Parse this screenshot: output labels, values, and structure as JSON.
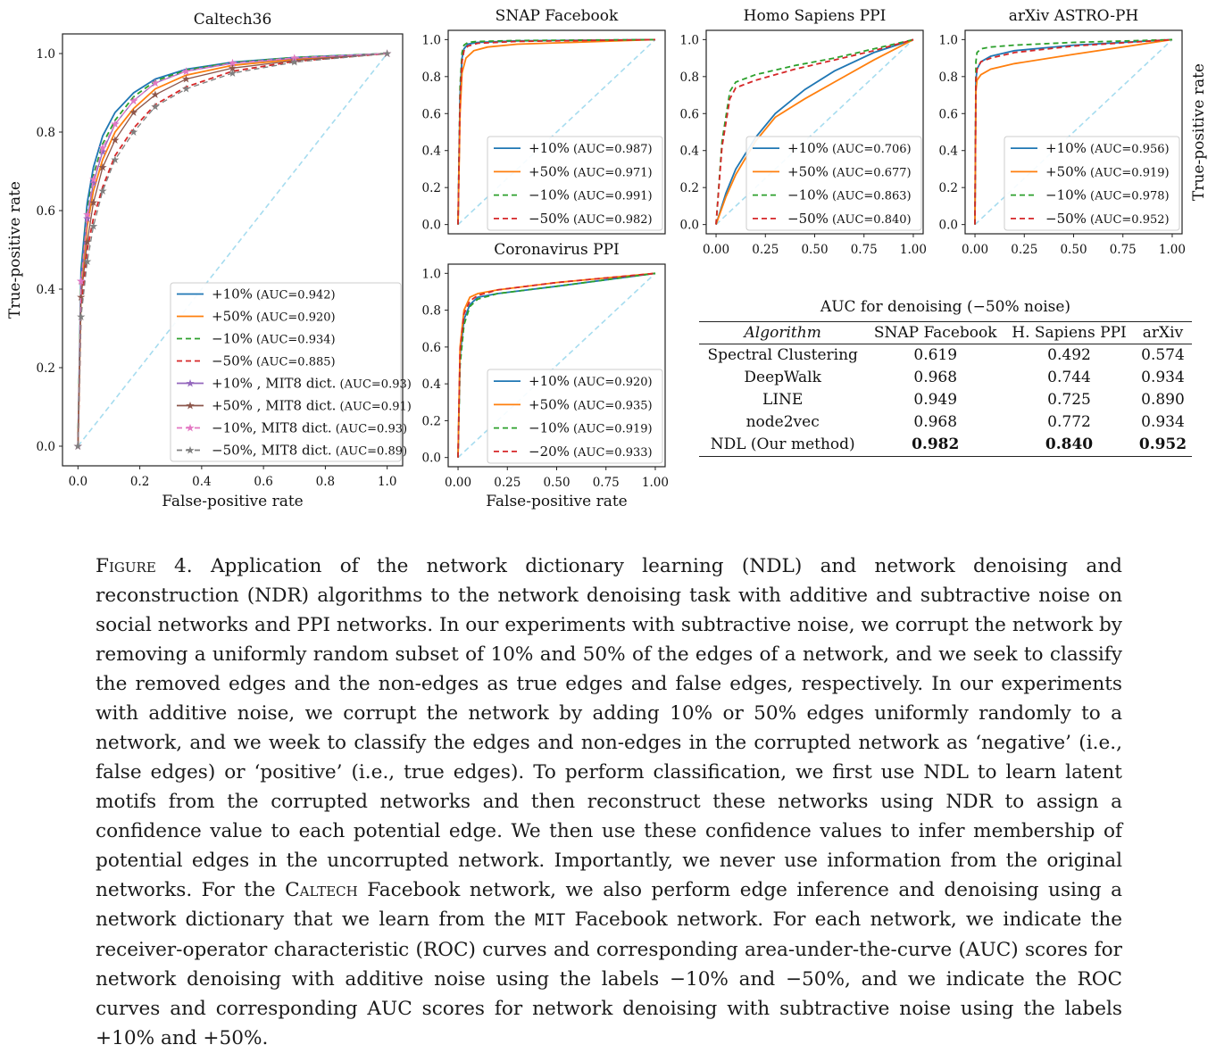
{
  "charts": [
    {
      "id": "caltech",
      "title": "Caltech36",
      "xlabel": "False-positive rate",
      "ylabel": "True-positive rate",
      "xticks": [
        "0.0",
        "0.2",
        "0.4",
        "0.6",
        "0.8",
        "1.0"
      ],
      "yticks": [
        "0.0",
        "0.2",
        "0.4",
        "0.6",
        "0.8",
        "1.0"
      ],
      "legend": [
        {
          "label": "+10%",
          "auc": "(AUC=0.942)"
        },
        {
          "label": "+50%",
          "auc": "(AUC=0.920)"
        },
        {
          "label": "−10%",
          "auc": "(AUC=0.934)"
        },
        {
          "label": "−50%",
          "auc": "(AUC=0.885)"
        },
        {
          "label": "+10% , MIT8 dict.",
          "auc": "(AUC=0.93)"
        },
        {
          "label": "+50% , MIT8 dict.",
          "auc": "(AUC=0.91)"
        },
        {
          "label": "−10%, MIT8 dict.",
          "auc": "(AUC=0.93)"
        },
        {
          "label": "−50%, MIT8 dict.",
          "auc": "(AUC=0.89)"
        }
      ]
    },
    {
      "id": "snap",
      "title": "SNAP Facebook",
      "xlabel": "",
      "ylabel": "",
      "xticks": [],
      "yticks": [
        "0.0",
        "0.2",
        "0.4",
        "0.6",
        "0.8",
        "1.0"
      ],
      "legend": [
        {
          "label": "+10%",
          "auc": "(AUC=0.987)"
        },
        {
          "label": "+50%",
          "auc": "(AUC=0.971)"
        },
        {
          "label": "−10%",
          "auc": "(AUC=0.991)"
        },
        {
          "label": "−50%",
          "auc": "(AUC=0.982)"
        }
      ]
    },
    {
      "id": "homo",
      "title": "Homo Sapiens PPI",
      "xlabel": "",
      "ylabel": "",
      "xticks": [
        "0.00",
        "0.25",
        "0.50",
        "0.75",
        "1.00"
      ],
      "yticks": [
        "0.0",
        "0.2",
        "0.4",
        "0.6",
        "0.8",
        "1.0"
      ],
      "legend": [
        {
          "label": "+10%",
          "auc": "(AUC=0.706)"
        },
        {
          "label": "+50%",
          "auc": "(AUC=0.677)"
        },
        {
          "label": "−10%",
          "auc": "(AUC=0.863)"
        },
        {
          "label": "−50%",
          "auc": "(AUC=0.840)"
        }
      ]
    },
    {
      "id": "arxiv",
      "title": "arXiv ASTRO-PH",
      "xlabel": "",
      "ylabel": "True-positive rate",
      "xticks": [
        "0.00",
        "0.25",
        "0.50",
        "0.75",
        "1.00"
      ],
      "yticks": [
        "0.0",
        "0.2",
        "0.4",
        "0.6",
        "0.8",
        "1.0"
      ],
      "legend": [
        {
          "label": "+10%",
          "auc": "(AUC=0.956)"
        },
        {
          "label": "+50%",
          "auc": "(AUC=0.919)"
        },
        {
          "label": "−10%",
          "auc": "(AUC=0.978)"
        },
        {
          "label": "−50%",
          "auc": "(AUC=0.952)"
        }
      ]
    },
    {
      "id": "corona",
      "title": "Coronavirus PPI",
      "xlabel": "False-positive rate",
      "ylabel": "",
      "xticks": [
        "0.00",
        "0.25",
        "0.50",
        "0.75",
        "1.00"
      ],
      "yticks": [
        "0.0",
        "0.2",
        "0.4",
        "0.6",
        "0.8",
        "1.0"
      ],
      "legend": [
        {
          "label": "+10%",
          "auc": "(AUC=0.920)"
        },
        {
          "label": "+50%",
          "auc": "(AUC=0.935)"
        },
        {
          "label": "−10%",
          "auc": "(AUC=0.919)"
        },
        {
          "label": "−20%",
          "auc": "(AUC=0.933)"
        }
      ]
    }
  ],
  "series_colors": [
    "#1f77b4",
    "#ff7f0e",
    "#2ca02c",
    "#d62728",
    "#9467bd",
    "#8c564b",
    "#e377c2",
    "#7f7f7f"
  ],
  "diagonal_color": "#a6dcef",
  "chart_data": [
    {
      "type": "line",
      "title": "Caltech36",
      "xlabel": "False-positive rate",
      "ylabel": "True-positive rate",
      "xlim": [
        0,
        1
      ],
      "ylim": [
        0,
        1
      ],
      "legend_position": "lower-right",
      "series": [
        {
          "name": "+10% (AUC=0.942)",
          "x": [
            0,
            0.01,
            0.03,
            0.05,
            0.08,
            0.12,
            0.18,
            0.25,
            0.35,
            0.5,
            0.7,
            1
          ],
          "y": [
            0,
            0.45,
            0.62,
            0.71,
            0.79,
            0.85,
            0.9,
            0.935,
            0.96,
            0.978,
            0.99,
            1
          ]
        },
        {
          "name": "+50% (AUC=0.920)",
          "x": [
            0,
            0.01,
            0.03,
            0.05,
            0.08,
            0.12,
            0.18,
            0.25,
            0.35,
            0.5,
            0.7,
            1
          ],
          "y": [
            0,
            0.4,
            0.56,
            0.65,
            0.73,
            0.8,
            0.86,
            0.91,
            0.945,
            0.97,
            0.985,
            1
          ]
        },
        {
          "name": "−10% (AUC=0.934)",
          "x": [
            0,
            0.01,
            0.03,
            0.05,
            0.08,
            0.12,
            0.18,
            0.25,
            0.35,
            0.5,
            0.7,
            1
          ],
          "y": [
            0,
            0.43,
            0.6,
            0.69,
            0.77,
            0.83,
            0.89,
            0.93,
            0.958,
            0.977,
            0.99,
            1
          ]
        },
        {
          "name": "−50% (AUC=0.885)",
          "x": [
            0,
            0.01,
            0.03,
            0.05,
            0.08,
            0.12,
            0.18,
            0.25,
            0.35,
            0.5,
            0.7,
            1
          ],
          "y": [
            0,
            0.35,
            0.5,
            0.58,
            0.66,
            0.74,
            0.81,
            0.87,
            0.915,
            0.955,
            0.98,
            1
          ]
        },
        {
          "name": "+10% , MIT8 dict. (AUC=0.93)",
          "x": [
            0,
            0.01,
            0.03,
            0.05,
            0.08,
            0.12,
            0.18,
            0.25,
            0.35,
            0.5,
            0.7,
            1
          ],
          "y": [
            0,
            0.42,
            0.58,
            0.67,
            0.75,
            0.82,
            0.88,
            0.925,
            0.955,
            0.975,
            0.988,
            1
          ]
        },
        {
          "name": "+50% , MIT8 dict. (AUC=0.91)",
          "x": [
            0,
            0.01,
            0.03,
            0.05,
            0.08,
            0.12,
            0.18,
            0.25,
            0.35,
            0.5,
            0.7,
            1
          ],
          "y": [
            0,
            0.38,
            0.52,
            0.62,
            0.71,
            0.78,
            0.85,
            0.895,
            0.935,
            0.963,
            0.982,
            1
          ]
        },
        {
          "name": "−10%, MIT8 dict. (AUC=0.93)",
          "x": [
            0,
            0.01,
            0.03,
            0.05,
            0.08,
            0.12,
            0.18,
            0.25,
            0.35,
            0.5,
            0.7,
            1
          ],
          "y": [
            0,
            0.42,
            0.59,
            0.68,
            0.76,
            0.82,
            0.88,
            0.925,
            0.955,
            0.976,
            0.989,
            1
          ]
        },
        {
          "name": "−50%, MIT8 dict. (AUC=0.89)",
          "x": [
            0,
            0.01,
            0.03,
            0.05,
            0.08,
            0.12,
            0.18,
            0.25,
            0.35,
            0.5,
            0.7,
            1
          ],
          "y": [
            0,
            0.33,
            0.47,
            0.56,
            0.65,
            0.73,
            0.8,
            0.865,
            0.91,
            0.95,
            0.978,
            1
          ]
        }
      ]
    },
    {
      "type": "line",
      "title": "SNAP Facebook",
      "xlim": [
        0,
        1
      ],
      "ylim": [
        0,
        1
      ],
      "legend_position": "lower-right",
      "series": [
        {
          "name": "+10% (AUC=0.987)",
          "x": [
            0,
            0.01,
            0.02,
            0.03,
            0.05,
            0.1,
            0.3,
            1
          ],
          "y": [
            0,
            0.7,
            0.9,
            0.95,
            0.975,
            0.985,
            0.993,
            1
          ]
        },
        {
          "name": "+50% (AUC=0.971)",
          "x": [
            0,
            0.01,
            0.02,
            0.04,
            0.08,
            0.15,
            0.3,
            1
          ],
          "y": [
            0,
            0.6,
            0.82,
            0.9,
            0.94,
            0.96,
            0.975,
            1
          ]
        },
        {
          "name": "−10% (AUC=0.991)",
          "x": [
            0,
            0.01,
            0.02,
            0.03,
            0.05,
            0.1,
            0.3,
            1
          ],
          "y": [
            0,
            0.75,
            0.93,
            0.97,
            0.985,
            0.99,
            0.995,
            1
          ]
        },
        {
          "name": "−50% (AUC=0.982)",
          "x": [
            0,
            0.01,
            0.02,
            0.03,
            0.05,
            0.1,
            0.3,
            1
          ],
          "y": [
            0,
            0.68,
            0.88,
            0.94,
            0.965,
            0.98,
            0.99,
            1
          ]
        }
      ]
    },
    {
      "type": "line",
      "title": "Homo Sapiens PPI",
      "xlim": [
        0,
        1
      ],
      "ylim": [
        0,
        1
      ],
      "legend_position": "lower-right",
      "series": [
        {
          "name": "+10% (AUC=0.706)",
          "x": [
            0,
            0.05,
            0.1,
            0.2,
            0.3,
            0.45,
            0.6,
            0.8,
            1
          ],
          "y": [
            0,
            0.17,
            0.3,
            0.47,
            0.6,
            0.73,
            0.83,
            0.93,
            1
          ]
        },
        {
          "name": "+50% (AUC=0.677)",
          "x": [
            0,
            0.05,
            0.1,
            0.2,
            0.3,
            0.45,
            0.6,
            0.8,
            1
          ],
          "y": [
            0,
            0.15,
            0.27,
            0.45,
            0.58,
            0.68,
            0.77,
            0.89,
            1
          ]
        },
        {
          "name": "−10% (AUC=0.863)",
          "x": [
            0,
            0.03,
            0.07,
            0.1,
            0.2,
            0.4,
            0.6,
            0.8,
            1
          ],
          "y": [
            0,
            0.45,
            0.72,
            0.77,
            0.81,
            0.86,
            0.9,
            0.95,
            1
          ]
        },
        {
          "name": "−50% (AUC=0.840)",
          "x": [
            0,
            0.03,
            0.07,
            0.1,
            0.2,
            0.4,
            0.6,
            0.8,
            1
          ],
          "y": [
            0,
            0.42,
            0.68,
            0.74,
            0.78,
            0.84,
            0.89,
            0.94,
            1
          ]
        }
      ]
    },
    {
      "type": "line",
      "title": "arXiv ASTRO-PH",
      "ylabel": "True-positive rate",
      "xlim": [
        0,
        1
      ],
      "ylim": [
        0,
        1
      ],
      "legend_position": "lower-right",
      "series": [
        {
          "name": "+10% (AUC=0.956)",
          "x": [
            0,
            0.005,
            0.01,
            0.03,
            0.08,
            0.2,
            0.5,
            1
          ],
          "y": [
            0,
            0.78,
            0.84,
            0.88,
            0.91,
            0.94,
            0.97,
            1
          ]
        },
        {
          "name": "+50% (AUC=0.919)",
          "x": [
            0,
            0.005,
            0.01,
            0.03,
            0.08,
            0.2,
            0.5,
            1
          ],
          "y": [
            0,
            0.72,
            0.78,
            0.81,
            0.84,
            0.87,
            0.92,
            1
          ]
        },
        {
          "name": "−10% (AUC=0.978)",
          "x": [
            0,
            0.005,
            0.01,
            0.03,
            0.08,
            0.2,
            0.5,
            1
          ],
          "y": [
            0,
            0.88,
            0.93,
            0.95,
            0.96,
            0.97,
            0.985,
            1
          ]
        },
        {
          "name": "−50% (AUC=0.952)",
          "x": [
            0,
            0.005,
            0.01,
            0.03,
            0.08,
            0.2,
            0.5,
            1
          ],
          "y": [
            0,
            0.78,
            0.84,
            0.88,
            0.9,
            0.93,
            0.965,
            1
          ]
        }
      ]
    },
    {
      "type": "line",
      "title": "Coronavirus PPI",
      "xlabel": "False-positive rate",
      "xlim": [
        0,
        1
      ],
      "ylim": [
        0,
        1
      ],
      "legend_position": "lower-right",
      "series": [
        {
          "name": "+10% (AUC=0.920)",
          "x": [
            0,
            0.01,
            0.03,
            0.06,
            0.1,
            0.2,
            0.5,
            1
          ],
          "y": [
            0,
            0.55,
            0.75,
            0.83,
            0.87,
            0.89,
            0.93,
            1
          ]
        },
        {
          "name": "+50% (AUC=0.935)",
          "x": [
            0,
            0.01,
            0.03,
            0.06,
            0.1,
            0.2,
            0.5,
            1
          ],
          "y": [
            0,
            0.6,
            0.8,
            0.87,
            0.89,
            0.91,
            0.95,
            1
          ]
        },
        {
          "name": "−10% (AUC=0.919)",
          "x": [
            0,
            0.01,
            0.03,
            0.06,
            0.1,
            0.2,
            0.5,
            1
          ],
          "y": [
            0,
            0.5,
            0.72,
            0.82,
            0.86,
            0.89,
            0.93,
            1
          ]
        },
        {
          "name": "−20% (AUC=0.933)",
          "x": [
            0,
            0.01,
            0.03,
            0.06,
            0.1,
            0.2,
            0.5,
            1
          ],
          "y": [
            0,
            0.58,
            0.78,
            0.85,
            0.88,
            0.91,
            0.95,
            1
          ]
        }
      ]
    }
  ],
  "table": {
    "title": "AUC for denoising (−50% noise)",
    "headers": [
      "Algorithm",
      "SNAP Facebook",
      "H. Sapiens PPI",
      "arXiv"
    ],
    "rows": [
      [
        "Spectral Clustering",
        "0.619",
        "0.492",
        "0.574"
      ],
      [
        "DeepWalk",
        "0.968",
        "0.744",
        "0.934"
      ],
      [
        "LINE",
        "0.949",
        "0.725",
        "0.890"
      ],
      [
        "node2vec",
        "0.968",
        "0.772",
        "0.934"
      ],
      [
        "NDL (Our method)",
        "0.982",
        "0.840",
        "0.952"
      ]
    ]
  },
  "caption": {
    "figure_label": "Figure 4.",
    "p1": " Application of the network dictionary learning (NDL) and network denoising and reconstruction (NDR) algorithms to the network denoising task with additive and subtractive noise on social networks and PPI networks. In our experiments with subtractive noise, we corrupt the network by removing a uniformly random subset of 10% and 50% of the edges of a network, and we seek to classify the removed edges and the non-edges as true edges and false edges, respectively. In our experiments with additive noise, we corrupt the network by adding 10% or 50% edges uniformly randomly to a network, and we week to classify the edges and non-edges in the corrupted network as ‘negative’ (i.e., false edges) or ‘positive’ (i.e., true edges). To perform classification, we first use NDL to learn latent motifs from the corrupted networks and then reconstruct these networks using NDR to assign a confidence value to each potential edge. We then use these confidence values to infer membership of potential edges in the uncorrupted network. Importantly, we never use information from the original networks. For the ",
    "caltech": "Caltech",
    "p2": " Facebook network, we also perform edge inference and denoising using a network dictionary that we learn from the ",
    "mit": "MIT",
    "p3": " Facebook network. For each network, we indicate the receiver-operator characteristic (ROC) curves and corresponding area-under-the-curve (AUC) scores for network denoising with additive noise using the labels −10% and −50%, and we indicate the ROC curves and corresponding AUC scores for network denoising with subtractive noise using the labels +10% and +50%."
  }
}
